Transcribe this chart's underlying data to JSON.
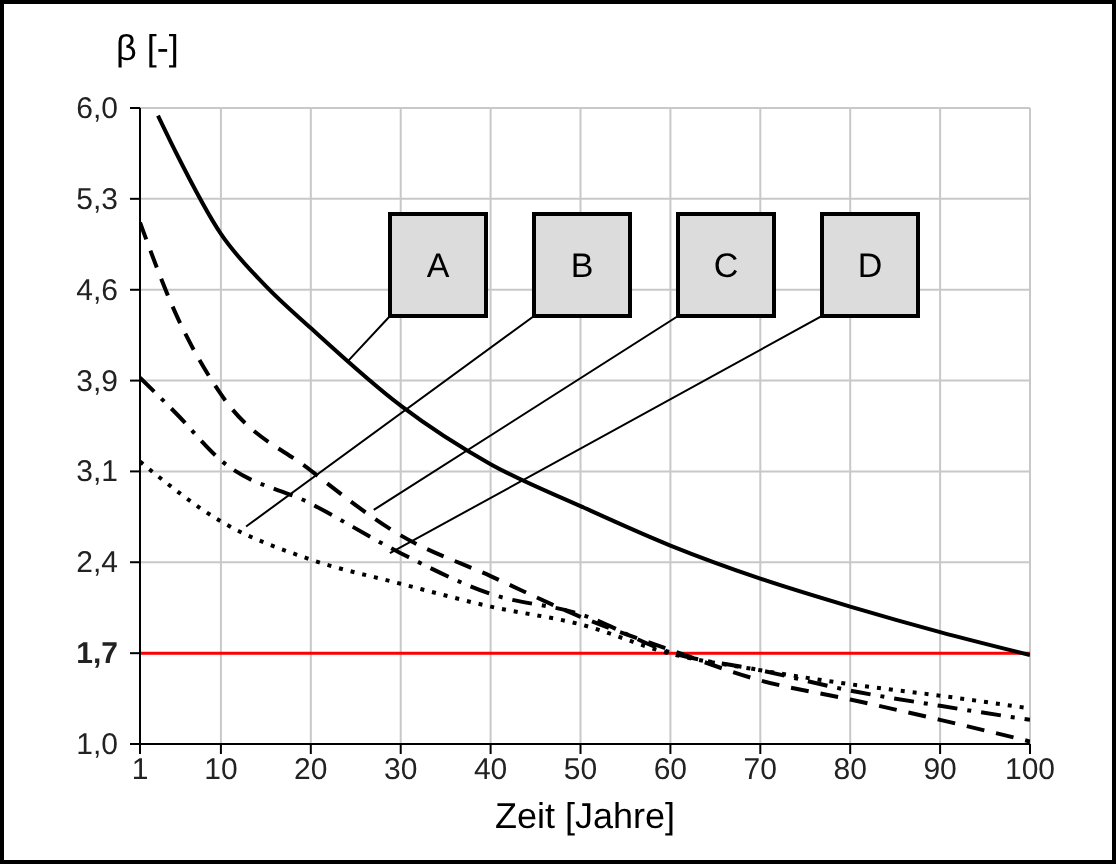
{
  "chart_data": {
    "type": "line",
    "xlabel": "Zeit [Jahre]",
    "ylabel": "β [-]",
    "xlim": [
      1,
      100
    ],
    "xticks": [
      1,
      10,
      20,
      30,
      40,
      50,
      60,
      70,
      80,
      90,
      100
    ],
    "ylim": [
      1.0,
      6.0
    ],
    "yticks": [
      {
        "value": 1.0,
        "label": "1,0"
      },
      {
        "value": 1.714,
        "label": "1,7"
      },
      {
        "value": 2.429,
        "label": "2,4"
      },
      {
        "value": 3.143,
        "label": "3,1"
      },
      {
        "value": 3.857,
        "label": "3,9"
      },
      {
        "value": 4.571,
        "label": "4,6"
      },
      {
        "value": 5.286,
        "label": "5,3"
      },
      {
        "value": 6.0,
        "label": "6,0"
      }
    ],
    "grid": true,
    "marker": "none",
    "series": [
      {
        "color": "#000000",
        "line_style": "solid",
        "x": [
          3,
          5,
          10,
          15,
          20,
          30,
          40,
          50,
          60,
          70,
          80,
          90,
          100
        ],
        "values": [
          5.94,
          5.65,
          5.01,
          4.6,
          4.27,
          3.66,
          3.2,
          2.87,
          2.56,
          2.3,
          2.08,
          1.88,
          1.7
        ]
      },
      {
        "color": "#000000",
        "line_style": "dashed",
        "x": [
          1,
          5,
          10,
          20,
          30,
          40,
          50,
          60,
          70,
          80,
          90,
          100
        ],
        "values": [
          5.1,
          4.38,
          3.75,
          3.15,
          2.64,
          2.32,
          2.0,
          1.74,
          1.5,
          1.35,
          1.19,
          1.02
        ]
      },
      {
        "color": "#000000",
        "line_style": "dashdot",
        "x": [
          1,
          5,
          10,
          20,
          30,
          40,
          50,
          60,
          70,
          80,
          90,
          100
        ],
        "values": [
          3.88,
          3.6,
          3.23,
          2.89,
          2.5,
          2.18,
          2.02,
          1.72,
          1.58,
          1.42,
          1.3,
          1.19
        ]
      },
      {
        "color": "#000000",
        "line_style": "dotted",
        "x": [
          1,
          10,
          20,
          30,
          40,
          50,
          60,
          70,
          80,
          90,
          100
        ],
        "values": [
          3.22,
          2.75,
          2.45,
          2.26,
          2.08,
          1.94,
          1.71,
          1.58,
          1.47,
          1.38,
          1.28
        ]
      }
    ],
    "ref_lines": [
      {
        "axis": "y",
        "value": 1.714,
        "color": "#ff0000"
      }
    ],
    "annotations": [
      {
        "text": "A",
        "x": 24,
        "y": 4.0
      },
      {
        "text": "B",
        "x": 12.8,
        "y": 2.71
      },
      {
        "text": "C",
        "x": 27,
        "y": 2.84
      },
      {
        "text": "D",
        "x": 28.8,
        "y": 2.5
      }
    ]
  }
}
